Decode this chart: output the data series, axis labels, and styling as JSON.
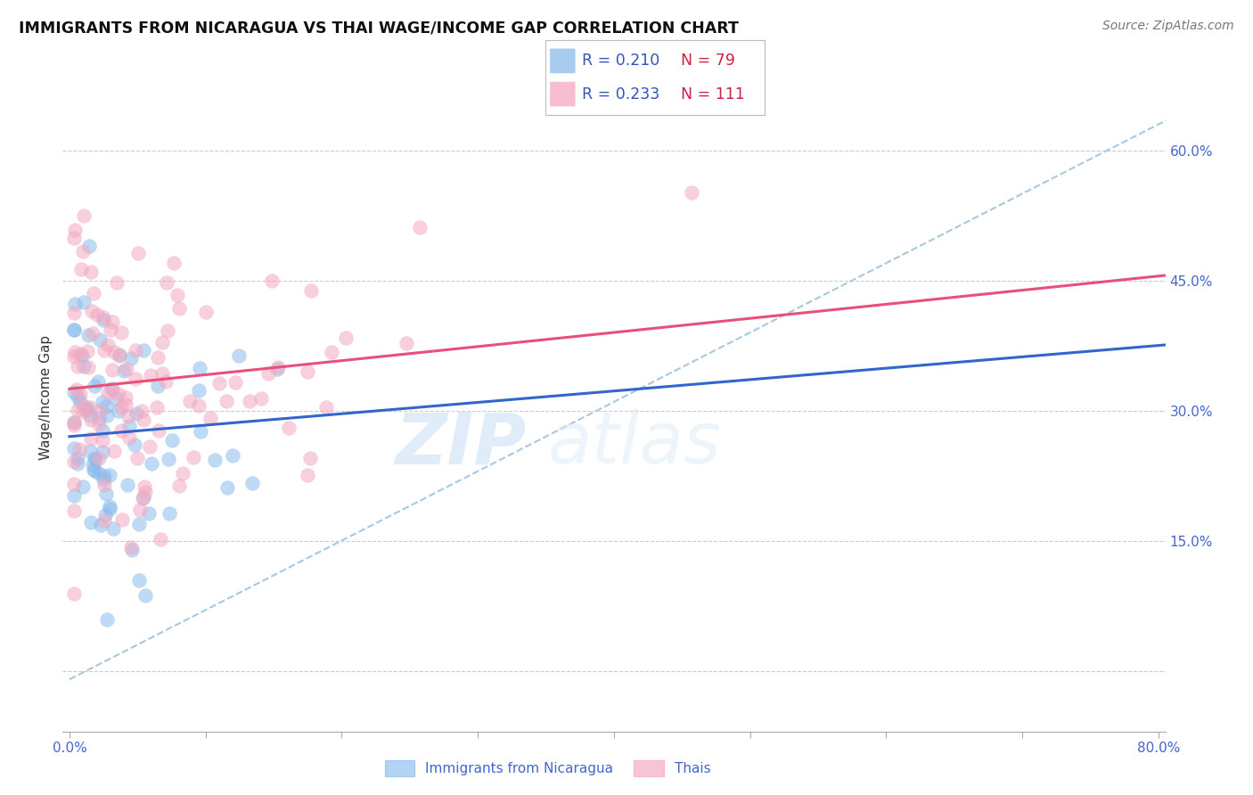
{
  "title": "IMMIGRANTS FROM NICARAGUA VS THAI WAGE/INCOME GAP CORRELATION CHART",
  "source": "Source: ZipAtlas.com",
  "ylabel": "Wage/Income Gap",
  "xlim": [
    0.0,
    0.8
  ],
  "ylim": [
    -0.07,
    0.7
  ],
  "yticks": [
    0.0,
    0.15,
    0.3,
    0.45,
    0.6
  ],
  "yticklabels_right": [
    "",
    "15.0%",
    "30.0%",
    "45.0%",
    "60.0%"
  ],
  "xtick_positions": [
    0.0,
    0.1,
    0.2,
    0.3,
    0.4,
    0.5,
    0.6,
    0.7,
    0.8
  ],
  "xticklabels": [
    "0.0%",
    "",
    "",
    "",
    "",
    "",
    "",
    "",
    "80.0%"
  ],
  "grid_color": "#cccccc",
  "background_color": "#ffffff",
  "blue_color": "#8bbcec",
  "pink_color": "#f4a8c0",
  "blue_line_color": "#3366cc",
  "pink_line_color": "#e8507a",
  "dashed_line_color": "#a8c8e0",
  "legend_r_blue": "0.210",
  "legend_n_blue": "79",
  "legend_r_pink": "0.233",
  "legend_n_pink": "111",
  "watermark_zip": "ZIP",
  "watermark_atlas": "atlas",
  "legend_label_blue": "Immigrants from Nicaragua",
  "legend_label_pink": "Thais",
  "tick_color": "#4466cc",
  "title_color": "#111111",
  "ylabel_color": "#333333",
  "source_color": "#777777"
}
